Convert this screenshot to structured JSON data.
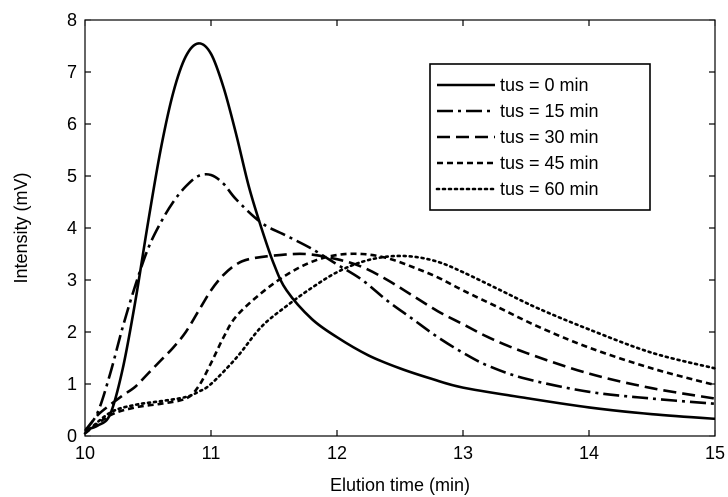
{
  "chart_data": {
    "type": "line",
    "title": "",
    "xlabel": "Elution time (min)",
    "ylabel": "Intensity (mV)",
    "xlim": [
      10,
      15
    ],
    "ylim": [
      0,
      8
    ],
    "x_ticks": [
      "10",
      "11",
      "12",
      "13",
      "14",
      "15"
    ],
    "y_ticks": [
      "0",
      "1",
      "2",
      "3",
      "4",
      "5",
      "6",
      "7",
      "8"
    ],
    "grid": false,
    "legend_position": "top-right",
    "series": [
      {
        "name": "tus = 0 min",
        "dash": "solid",
        "points": [
          [
            10.0,
            0.12
          ],
          [
            10.1,
            0.2
          ],
          [
            10.2,
            0.42
          ],
          [
            10.3,
            1.3
          ],
          [
            10.4,
            2.6
          ],
          [
            10.5,
            4.1
          ],
          [
            10.6,
            5.5
          ],
          [
            10.7,
            6.6
          ],
          [
            10.8,
            7.3
          ],
          [
            10.9,
            7.55
          ],
          [
            11.0,
            7.35
          ],
          [
            11.1,
            6.7
          ],
          [
            11.2,
            5.8
          ],
          [
            11.3,
            4.8
          ],
          [
            11.4,
            4.0
          ],
          [
            11.5,
            3.3
          ],
          [
            11.6,
            2.8
          ],
          [
            11.8,
            2.25
          ],
          [
            12.0,
            1.9
          ],
          [
            12.25,
            1.55
          ],
          [
            12.5,
            1.3
          ],
          [
            12.75,
            1.1
          ],
          [
            13.0,
            0.93
          ],
          [
            13.5,
            0.73
          ],
          [
            14.0,
            0.55
          ],
          [
            14.5,
            0.42
          ],
          [
            15.0,
            0.33
          ]
        ]
      },
      {
        "name": "tus = 15 min",
        "dash": "dash-dot",
        "points": [
          [
            10.0,
            0.1
          ],
          [
            10.1,
            0.45
          ],
          [
            10.2,
            1.2
          ],
          [
            10.3,
            2.1
          ],
          [
            10.4,
            2.9
          ],
          [
            10.5,
            3.6
          ],
          [
            10.6,
            4.1
          ],
          [
            10.7,
            4.5
          ],
          [
            10.8,
            4.8
          ],
          [
            10.9,
            5.0
          ],
          [
            11.0,
            5.02
          ],
          [
            11.1,
            4.85
          ],
          [
            11.2,
            4.55
          ],
          [
            11.4,
            4.1
          ],
          [
            11.6,
            3.85
          ],
          [
            11.8,
            3.6
          ],
          [
            12.0,
            3.3
          ],
          [
            12.2,
            3.0
          ],
          [
            12.4,
            2.6
          ],
          [
            12.6,
            2.25
          ],
          [
            12.8,
            1.9
          ],
          [
            13.0,
            1.6
          ],
          [
            13.2,
            1.35
          ],
          [
            13.5,
            1.1
          ],
          [
            14.0,
            0.85
          ],
          [
            14.5,
            0.72
          ],
          [
            15.0,
            0.62
          ]
        ]
      },
      {
        "name": "tus = 30 min",
        "dash": "dash",
        "points": [
          [
            10.0,
            0.1
          ],
          [
            10.1,
            0.4
          ],
          [
            10.2,
            0.6
          ],
          [
            10.3,
            0.78
          ],
          [
            10.4,
            0.95
          ],
          [
            10.5,
            1.2
          ],
          [
            10.6,
            1.45
          ],
          [
            10.7,
            1.7
          ],
          [
            10.8,
            2.0
          ],
          [
            10.9,
            2.4
          ],
          [
            11.0,
            2.8
          ],
          [
            11.1,
            3.1
          ],
          [
            11.2,
            3.3
          ],
          [
            11.3,
            3.4
          ],
          [
            11.5,
            3.47
          ],
          [
            11.75,
            3.5
          ],
          [
            12.0,
            3.4
          ],
          [
            12.2,
            3.25
          ],
          [
            12.4,
            3.0
          ],
          [
            12.6,
            2.7
          ],
          [
            12.8,
            2.4
          ],
          [
            13.0,
            2.15
          ],
          [
            13.2,
            1.9
          ],
          [
            13.5,
            1.6
          ],
          [
            14.0,
            1.2
          ],
          [
            14.5,
            0.92
          ],
          [
            15.0,
            0.72
          ]
        ]
      },
      {
        "name": "tus = 45 min",
        "dash": "short-dash",
        "points": [
          [
            10.0,
            0.05
          ],
          [
            10.2,
            0.4
          ],
          [
            10.4,
            0.55
          ],
          [
            10.6,
            0.62
          ],
          [
            10.8,
            0.72
          ],
          [
            10.9,
            0.95
          ],
          [
            11.0,
            1.4
          ],
          [
            11.1,
            1.9
          ],
          [
            11.2,
            2.3
          ],
          [
            11.4,
            2.75
          ],
          [
            11.6,
            3.1
          ],
          [
            11.8,
            3.35
          ],
          [
            12.0,
            3.48
          ],
          [
            12.2,
            3.5
          ],
          [
            12.4,
            3.42
          ],
          [
            12.6,
            3.25
          ],
          [
            12.8,
            3.05
          ],
          [
            13.0,
            2.8
          ],
          [
            13.3,
            2.45
          ],
          [
            13.6,
            2.1
          ],
          [
            14.0,
            1.7
          ],
          [
            14.5,
            1.3
          ],
          [
            15.0,
            0.98
          ]
        ]
      },
      {
        "name": "tus = 60 min",
        "dash": "dot",
        "points": [
          [
            10.0,
            0.05
          ],
          [
            10.2,
            0.45
          ],
          [
            10.4,
            0.6
          ],
          [
            10.6,
            0.67
          ],
          [
            10.8,
            0.75
          ],
          [
            10.9,
            0.85
          ],
          [
            11.0,
            1.0
          ],
          [
            11.2,
            1.5
          ],
          [
            11.4,
            2.1
          ],
          [
            11.6,
            2.5
          ],
          [
            11.8,
            2.85
          ],
          [
            12.0,
            3.15
          ],
          [
            12.2,
            3.35
          ],
          [
            12.4,
            3.45
          ],
          [
            12.6,
            3.45
          ],
          [
            12.8,
            3.35
          ],
          [
            13.0,
            3.15
          ],
          [
            13.3,
            2.8
          ],
          [
            13.6,
            2.45
          ],
          [
            14.0,
            2.05
          ],
          [
            14.5,
            1.6
          ],
          [
            15.0,
            1.3
          ]
        ]
      }
    ]
  }
}
